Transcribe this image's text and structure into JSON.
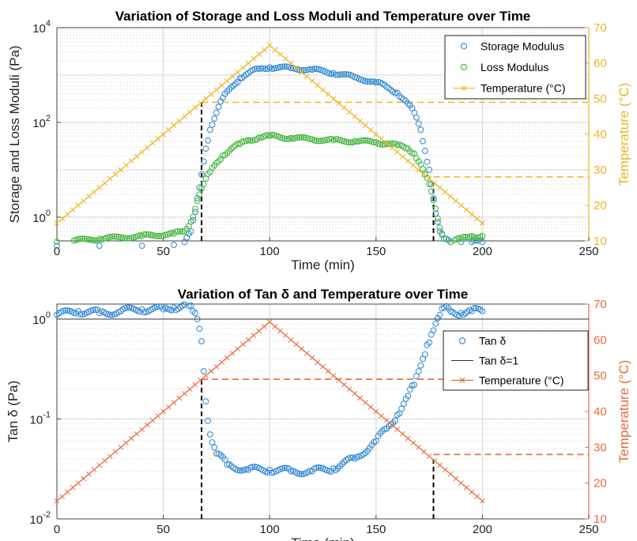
{
  "chart_data": [
    {
      "type": "scatter",
      "title": "Variation of Storage and Loss Moduli and Temperature over Time",
      "xlabel": "Time (min)",
      "ylabel": "Storage and Loss Moduli (Pa)",
      "ylabel_right": "Temperature (°C)",
      "xlim": [
        0,
        250
      ],
      "ylim_log10": [
        -0.5,
        4
      ],
      "ylim_right": [
        10,
        70
      ],
      "y_scale": "log",
      "grid": true,
      "legend_position": "top-right",
      "x_ticks": [
        "0",
        "50",
        "100",
        "150",
        "200",
        "250"
      ],
      "y_ticks": [
        {
          "base": "10",
          "exp": "0"
        },
        {
          "base": "10",
          "exp": "2"
        },
        {
          "base": "10",
          "exp": "4"
        }
      ],
      "y_ticks_right": [
        "10",
        "20",
        "30",
        "40",
        "50",
        "60",
        "70"
      ],
      "series": [
        {
          "name": "Storage Modulus",
          "axis": "left",
          "color": "#3b8fd4",
          "marker": "circle",
          "x": [
            0,
            20,
            40,
            55,
            60,
            63,
            65,
            66,
            67,
            68,
            69,
            70,
            72,
            75,
            78,
            82,
            86,
            90,
            95,
            100,
            110,
            120,
            130,
            140,
            150,
            155,
            160,
            165,
            168,
            171,
            173,
            175,
            176,
            177,
            178,
            180,
            182,
            185,
            190,
            195,
            200
          ],
          "y": [
            0.25,
            0.25,
            0.25,
            0.26,
            0.3,
            0.5,
            1.3,
            2.5,
            4.2,
            8,
            15,
            28,
            70,
            160,
            330,
            560,
            850,
            1100,
            1350,
            1450,
            1400,
            1300,
            1100,
            900,
            700,
            560,
            420,
            250,
            160,
            70,
            25,
            10,
            5,
            2.5,
            1.2,
            0.5,
            0.35,
            0.3,
            0.3,
            0.3,
            0.3
          ]
        },
        {
          "name": "Loss Modulus",
          "axis": "left",
          "color": "#4cb848",
          "marker": "circle",
          "x": [
            0,
            20,
            40,
            55,
            60,
            63,
            65,
            66,
            67,
            68,
            69,
            70,
            72,
            75,
            78,
            82,
            86,
            90,
            95,
            100,
            110,
            120,
            130,
            140,
            150,
            155,
            160,
            165,
            168,
            171,
            173,
            175,
            176,
            177,
            178,
            180,
            182,
            185,
            190,
            195,
            200
          ],
          "y": [
            0.3,
            0.35,
            0.4,
            0.45,
            0.5,
            0.8,
            1.5,
            2.2,
            3,
            4,
            5,
            6.5,
            9,
            14,
            20,
            28,
            35,
            42,
            48,
            52,
            47,
            44,
            42,
            40,
            38,
            36,
            33,
            28,
            22,
            13,
            8,
            5,
            3.5,
            2.3,
            1.5,
            0.6,
            0.35,
            0.3,
            0.35,
            0.4,
            0.4
          ]
        },
        {
          "name": "Temperature (°C)",
          "axis": "right",
          "color": "#f0b322",
          "marker": "x",
          "x": [
            0,
            100,
            200
          ],
          "y": [
            15,
            65,
            15
          ]
        }
      ],
      "reference_lines": [
        {
          "x": 68,
          "color": "#000000"
        },
        {
          "x": 177,
          "color": "#000000"
        },
        {
          "from_x": 68,
          "right_y": 49,
          "color": "#f0b322"
        },
        {
          "from_x": 177,
          "right_y": 28,
          "color": "#f0b322"
        }
      ]
    },
    {
      "type": "scatter",
      "title": "Variation of Tan δ and Temperature over Time",
      "xlabel": "Time (min)",
      "ylabel": "Tan δ (Pa)",
      "ylabel_right": "Temperature (°C)",
      "xlim": [
        0,
        250
      ],
      "ylim_log10": [
        -2,
        0.15
      ],
      "ylim_right": [
        10,
        70
      ],
      "y_scale": "log",
      "grid": true,
      "legend_position": "right",
      "x_ticks": [
        "0",
        "50",
        "100",
        "150",
        "200",
        "250"
      ],
      "y_ticks": [
        {
          "base": "10",
          "exp": "-2"
        },
        {
          "base": "10",
          "exp": "-1"
        },
        {
          "base": "10",
          "exp": "0"
        }
      ],
      "y_ticks_right": [
        "10",
        "20",
        "30",
        "40",
        "50",
        "60",
        "70"
      ],
      "series": [
        {
          "name": "Tan δ",
          "axis": "left",
          "color": "#3b8fd4",
          "marker": "circle",
          "x": [
            0,
            10,
            20,
            30,
            40,
            50,
            55,
            60,
            62,
            64,
            66,
            67,
            68,
            69,
            70,
            72,
            75,
            80,
            90,
            100,
            110,
            120,
            130,
            140,
            150,
            155,
            160,
            165,
            168,
            170,
            172,
            174,
            176,
            178,
            180,
            182,
            185,
            190,
            195,
            200
          ],
          "y": [
            1.1,
            1.2,
            1.15,
            1.2,
            1.25,
            1.25,
            1.3,
            1.4,
            1.35,
            1.2,
            1.0,
            0.8,
            0.6,
            0.3,
            0.15,
            0.07,
            0.045,
            0.035,
            0.031,
            0.031,
            0.03,
            0.03,
            0.032,
            0.04,
            0.06,
            0.08,
            0.11,
            0.17,
            0.22,
            0.3,
            0.4,
            0.55,
            0.7,
            0.9,
            1.1,
            1.3,
            1.2,
            1.15,
            1.2,
            1.2
          ]
        },
        {
          "name": "Tan δ=1",
          "axis": "left",
          "color": "#333333",
          "marker": "line",
          "y": 1
        },
        {
          "name": "Temperature (°C)",
          "axis": "right",
          "color": "#e8693a",
          "marker": "x",
          "x": [
            0,
            100,
            200
          ],
          "y": [
            15,
            65,
            15
          ]
        }
      ],
      "reference_lines": [
        {
          "x": 68,
          "color": "#000000"
        },
        {
          "x": 177,
          "color": "#000000"
        },
        {
          "from_x": 68,
          "right_y": 49,
          "color": "#e8693a"
        },
        {
          "from_x": 177,
          "right_y": 28,
          "color": "#e8693a"
        }
      ]
    }
  ]
}
